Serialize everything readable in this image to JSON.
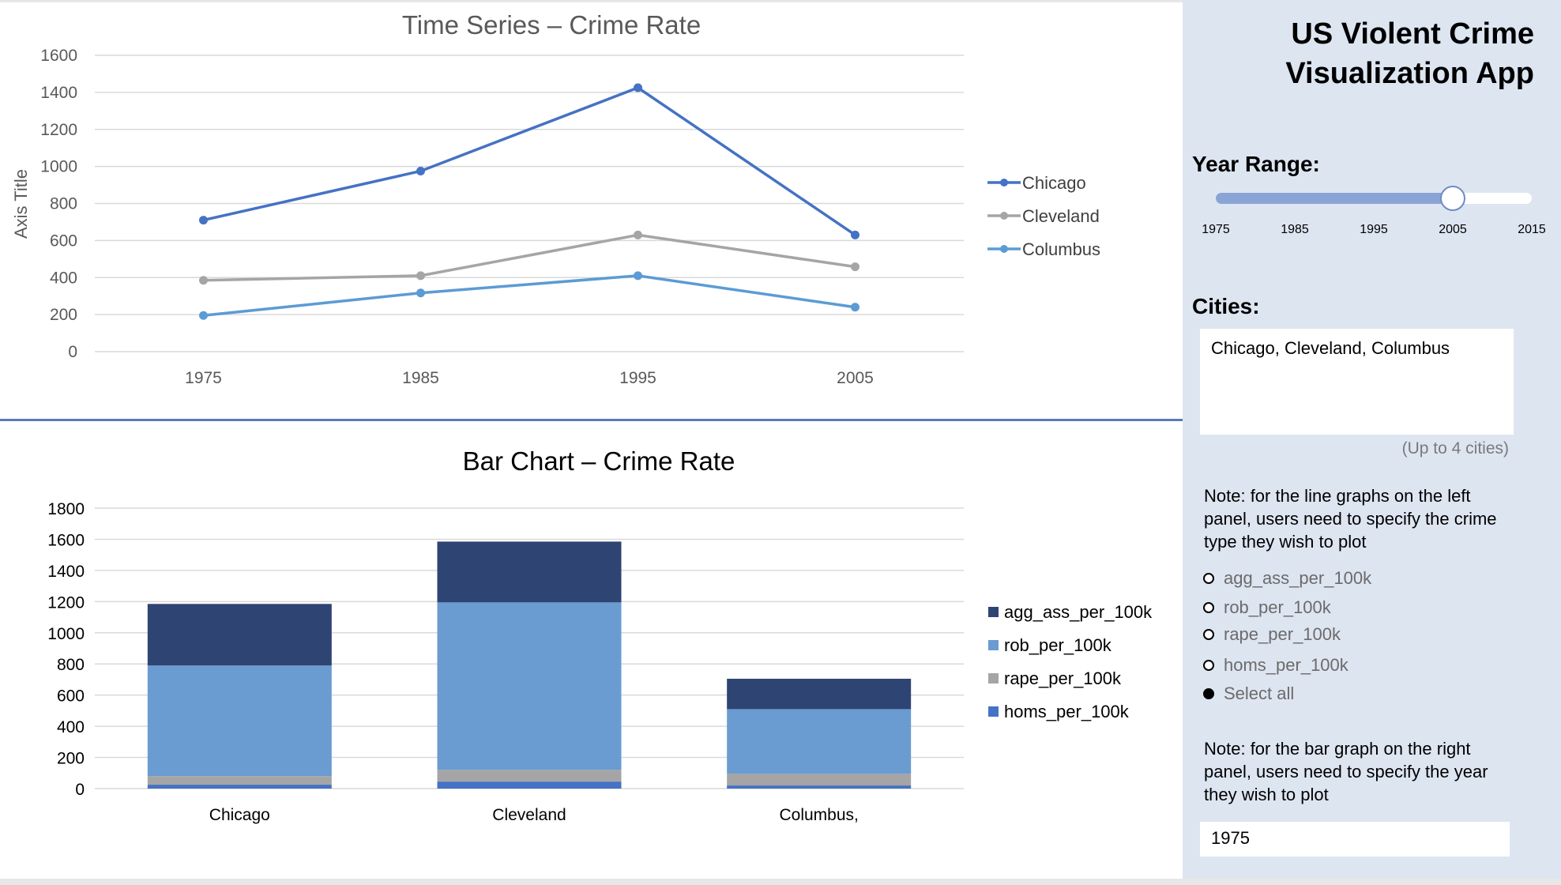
{
  "app_title_line1": "US Violent Crime",
  "app_title_line2": "Visualization App",
  "year_range": {
    "label": "Year Range:",
    "ticks": [
      "1975",
      "1985",
      "1995",
      "2005",
      "2015"
    ],
    "min": 1975,
    "max": 2015,
    "low": 1975,
    "high": 2005
  },
  "cities": {
    "label": "Cities:",
    "value": "Chicago, Cleveland, Columbus",
    "hint": "(Up to 4 cities)"
  },
  "note_line": {
    "lines": [
      "Note: for the line graphs on the left",
      "panel, users need to specify the crime",
      "type they wish to plot"
    ]
  },
  "crime_options": [
    {
      "label": "agg_ass_per_100k",
      "selected": false
    },
    {
      "label": "rob_per_100k",
      "selected": false
    },
    {
      "label": "rape_per_100k",
      "selected": false
    },
    {
      "label": "homs_per_100k",
      "selected": false
    },
    {
      "label": "Select all",
      "selected": true
    }
  ],
  "note_bar": {
    "lines": [
      "Note: for the bar graph on the right",
      "panel, users need to specify the year",
      "they wish to plot"
    ]
  },
  "bar_year": "1975",
  "colors": {
    "chicago": "#4472c4",
    "cleveland": "#a5a5a5",
    "columbus": "#5b9bd5",
    "agg_ass": "#2e4473",
    "rob": "#6a9bd1",
    "rape": "#a5a5a5",
    "homs": "#4472c4",
    "grid": "#d9d9d9",
    "sidebar": "#dde5f1"
  },
  "chart_data": [
    {
      "type": "line",
      "title": "Time Series – Crime Rate",
      "ylabel": "Axis Title",
      "x": [
        "1975",
        "1985",
        "1995",
        "2005"
      ],
      "ylim": [
        0,
        1600
      ],
      "yticks": [
        "0",
        "200",
        "400",
        "600",
        "800",
        "1000",
        "1200",
        "1400",
        "1600"
      ],
      "grid": true,
      "legend": "right",
      "series": [
        {
          "name": "Chicago",
          "values": [
            710,
            975,
            1425,
            630
          ]
        },
        {
          "name": "Cleveland",
          "values": [
            385,
            410,
            630,
            458
          ]
        },
        {
          "name": "Columbus",
          "values": [
            195,
            317,
            410,
            240
          ]
        }
      ]
    },
    {
      "type": "bar",
      "stacked": true,
      "title": "Bar Chart – Crime Rate",
      "categories": [
        "Chicago",
        "Cleveland",
        "Columbus,"
      ],
      "ylim": [
        0,
        1800
      ],
      "yticks": [
        "0",
        "200",
        "400",
        "600",
        "800",
        "1000",
        "1200",
        "1400",
        "1600",
        "1800"
      ],
      "grid": true,
      "legend": "right",
      "series": [
        {
          "name": "homs_per_100k",
          "values": [
            25,
            45,
            20
          ]
        },
        {
          "name": "rape_per_100k",
          "values": [
            55,
            75,
            75
          ]
        },
        {
          "name": "rob_per_100k",
          "values": [
            710,
            1075,
            415
          ]
        },
        {
          "name": "agg_ass_per_100k",
          "values": [
            395,
            390,
            195
          ]
        }
      ],
      "legend_order": [
        "agg_ass_per_100k",
        "rob_per_100k",
        "rape_per_100k",
        "homs_per_100k"
      ]
    }
  ]
}
